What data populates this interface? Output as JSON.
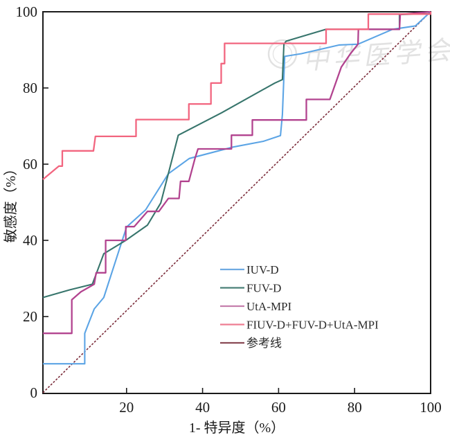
{
  "watermark": {
    "text": "中华医学会"
  },
  "axes": {
    "x": {
      "label": "1- 特异度（%）",
      "ticks": [
        20,
        40,
        60,
        80,
        100
      ],
      "zero_label": "0"
    },
    "y": {
      "label": "敏感度（%）",
      "ticks": [
        0,
        20,
        40,
        60,
        80,
        100
      ]
    }
  },
  "legend": [
    {
      "label": "IUV-D",
      "color": "#6FABE2"
    },
    {
      "label": "FUV-D",
      "color": "#4A8078"
    },
    {
      "label": "UtA-MPI",
      "color": "#C57FAC"
    },
    {
      "label": "FIUV-D+FUV-D+UtA-MPI",
      "color": "#EE7D92"
    },
    {
      "label": "参考线",
      "color": "#8A4A55"
    }
  ],
  "chart_data": {
    "type": "line",
    "title": "",
    "xlabel": "1- 特异度（%）",
    "ylabel": "敏感度（%）",
    "xlim": [
      0,
      100
    ],
    "ylim": [
      0,
      100
    ],
    "grid": false,
    "legend_position": "inside-lower-right",
    "series": [
      {
        "name": "参考线",
        "color": "#7A2A38",
        "width": 1.6,
        "dash": "3 2.2",
        "points": [
          [
            -2,
            0
          ],
          [
            100,
            100
          ]
        ]
      },
      {
        "name": "IUV-D",
        "color": "#5BA4E5",
        "width": 2.1,
        "dash": "",
        "points": [
          [
            -2,
            7.6
          ],
          [
            9,
            7.6
          ],
          [
            9,
            15.6
          ],
          [
            10.2,
            18.7
          ],
          [
            11.5,
            22
          ],
          [
            14,
            25
          ],
          [
            20,
            43.5
          ],
          [
            25,
            48
          ],
          [
            31,
            57.5
          ],
          [
            36.5,
            61.5
          ],
          [
            48,
            64.5
          ],
          [
            56,
            66
          ],
          [
            60.5,
            67.5
          ],
          [
            61,
            73
          ],
          [
            61.6,
            88.3
          ],
          [
            66,
            89
          ],
          [
            76,
            91.3
          ],
          [
            80.9,
            91.5
          ],
          [
            90,
            95.4
          ],
          [
            96,
            96.3
          ],
          [
            100,
            100
          ]
        ]
      },
      {
        "name": "FUV-D",
        "color": "#37756C",
        "width": 2.1,
        "dash": "",
        "points": [
          [
            -2,
            25
          ],
          [
            5,
            27
          ],
          [
            11,
            28.5
          ],
          [
            14,
            36.5
          ],
          [
            19.8,
            40
          ],
          [
            25.5,
            44
          ],
          [
            29,
            49.8
          ],
          [
            33.6,
            67.6
          ],
          [
            45,
            73.5
          ],
          [
            59,
            81.3
          ],
          [
            61,
            82.2
          ],
          [
            61.4,
            91.5
          ],
          [
            62,
            92.3
          ],
          [
            72.5,
            95.4
          ],
          [
            91.8,
            95.4
          ],
          [
            91.8,
            99.3
          ],
          [
            100,
            99.5
          ],
          [
            100,
            100
          ]
        ]
      },
      {
        "name": "UtA-MPI",
        "color": "#B2438F",
        "width": 2.3,
        "dash": "",
        "points": [
          [
            -2,
            15.6
          ],
          [
            5.6,
            15.6
          ],
          [
            5.6,
            24.4
          ],
          [
            8,
            26.5
          ],
          [
            11.5,
            28.5
          ],
          [
            12,
            31.5
          ],
          [
            14.5,
            31.5
          ],
          [
            14.5,
            40
          ],
          [
            19.8,
            40
          ],
          [
            19.8,
            43.6
          ],
          [
            22,
            43.6
          ],
          [
            25.5,
            47.6
          ],
          [
            28.5,
            47.6
          ],
          [
            31,
            51
          ],
          [
            33.8,
            51
          ],
          [
            34.2,
            55.5
          ],
          [
            36.4,
            55.5
          ],
          [
            38,
            61.5
          ],
          [
            38.8,
            64
          ],
          [
            47.6,
            64
          ],
          [
            47.6,
            67.6
          ],
          [
            53.1,
            67.6
          ],
          [
            53.1,
            71.6
          ],
          [
            67.3,
            71.6
          ],
          [
            67.3,
            77
          ],
          [
            73.5,
            77
          ],
          [
            76.5,
            85.5
          ],
          [
            78.9,
            89
          ],
          [
            80.9,
            91.5
          ],
          [
            81,
            95.4
          ],
          [
            91.8,
            95.4
          ],
          [
            92,
            99.3
          ],
          [
            100,
            100
          ]
        ]
      },
      {
        "name": "FIUV-D+FUV-D+UtA-MPI",
        "color": "#F2657F",
        "width": 2.3,
        "dash": "",
        "points": [
          [
            -2,
            56
          ],
          [
            2.2,
            59.5
          ],
          [
            3.1,
            59.5
          ],
          [
            3.1,
            63.5
          ],
          [
            11.3,
            63.5
          ],
          [
            11.8,
            67.3
          ],
          [
            22.5,
            67.3
          ],
          [
            22.5,
            71.7
          ],
          [
            36.4,
            71.7
          ],
          [
            36.4,
            75.8
          ],
          [
            42.2,
            75.8
          ],
          [
            42.2,
            81.3
          ],
          [
            44.9,
            81.3
          ],
          [
            44.9,
            86.4
          ],
          [
            45.8,
            86.4
          ],
          [
            45.8,
            91.7
          ],
          [
            72.5,
            91.7
          ],
          [
            72.5,
            95.4
          ],
          [
            83.6,
            95.4
          ],
          [
            83.6,
            99.4
          ],
          [
            100,
            99.4
          ],
          [
            100,
            100
          ]
        ]
      }
    ]
  }
}
